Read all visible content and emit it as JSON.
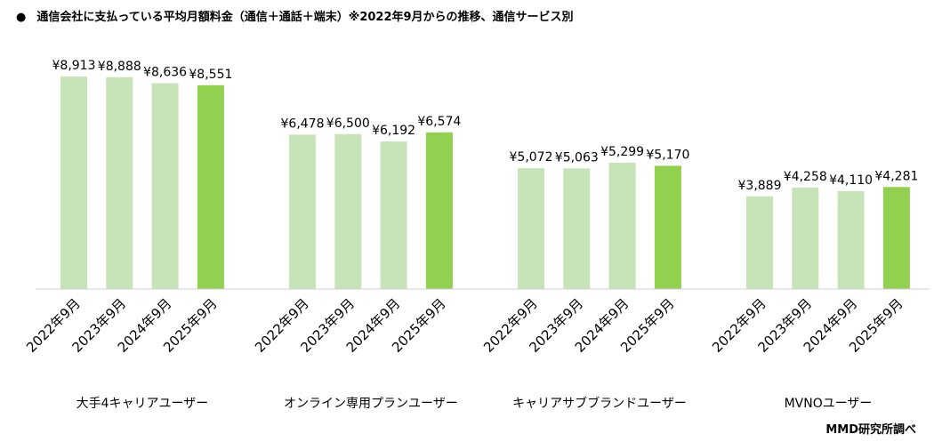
{
  "title": {
    "bullet": "●",
    "text": "通信会社に支払っている平均月額料金（通信＋通話＋端末）※2022年9月からの推移、通信サービス別"
  },
  "source": "MMD研究所調べ",
  "colors": {
    "past": "#c7e3b8",
    "latest": "#92d050",
    "axis": "#d0d0d0"
  },
  "chart_data": {
    "type": "bar",
    "title": "通信会社に支払っている平均月額料金（通信＋通話＋端末）※2022年9月からの推移、通信サービス別",
    "categories": [
      "2022年9月",
      "2023年9月",
      "2024年9月",
      "2025年9月"
    ],
    "groups": [
      {
        "name": "大手4キャリアユーザー",
        "values": [
          8913,
          8888,
          8636,
          8551
        ],
        "labels": [
          "¥8,913",
          "¥8,888",
          "¥8,636",
          "¥8,551"
        ]
      },
      {
        "name": "オンライン専用プランユーザー",
        "values": [
          6478,
          6500,
          6192,
          6574
        ],
        "labels": [
          "¥6,478",
          "¥6,500",
          "¥6,192",
          "¥6,574"
        ]
      },
      {
        "name": "キャリアサブブランドユーザー",
        "values": [
          5072,
          5063,
          5299,
          5170
        ],
        "labels": [
          "¥5,072",
          "¥5,063",
          "¥5,299",
          "¥5,170"
        ]
      },
      {
        "name": "MVNOユーザー",
        "values": [
          3889,
          4258,
          4110,
          4281
        ],
        "labels": [
          "¥3,889",
          "¥4,258",
          "¥4,110",
          "¥4,281"
        ]
      }
    ],
    "ylim": [
      0,
      10000
    ],
    "unit": "円",
    "grid": false,
    "legend": "none"
  }
}
